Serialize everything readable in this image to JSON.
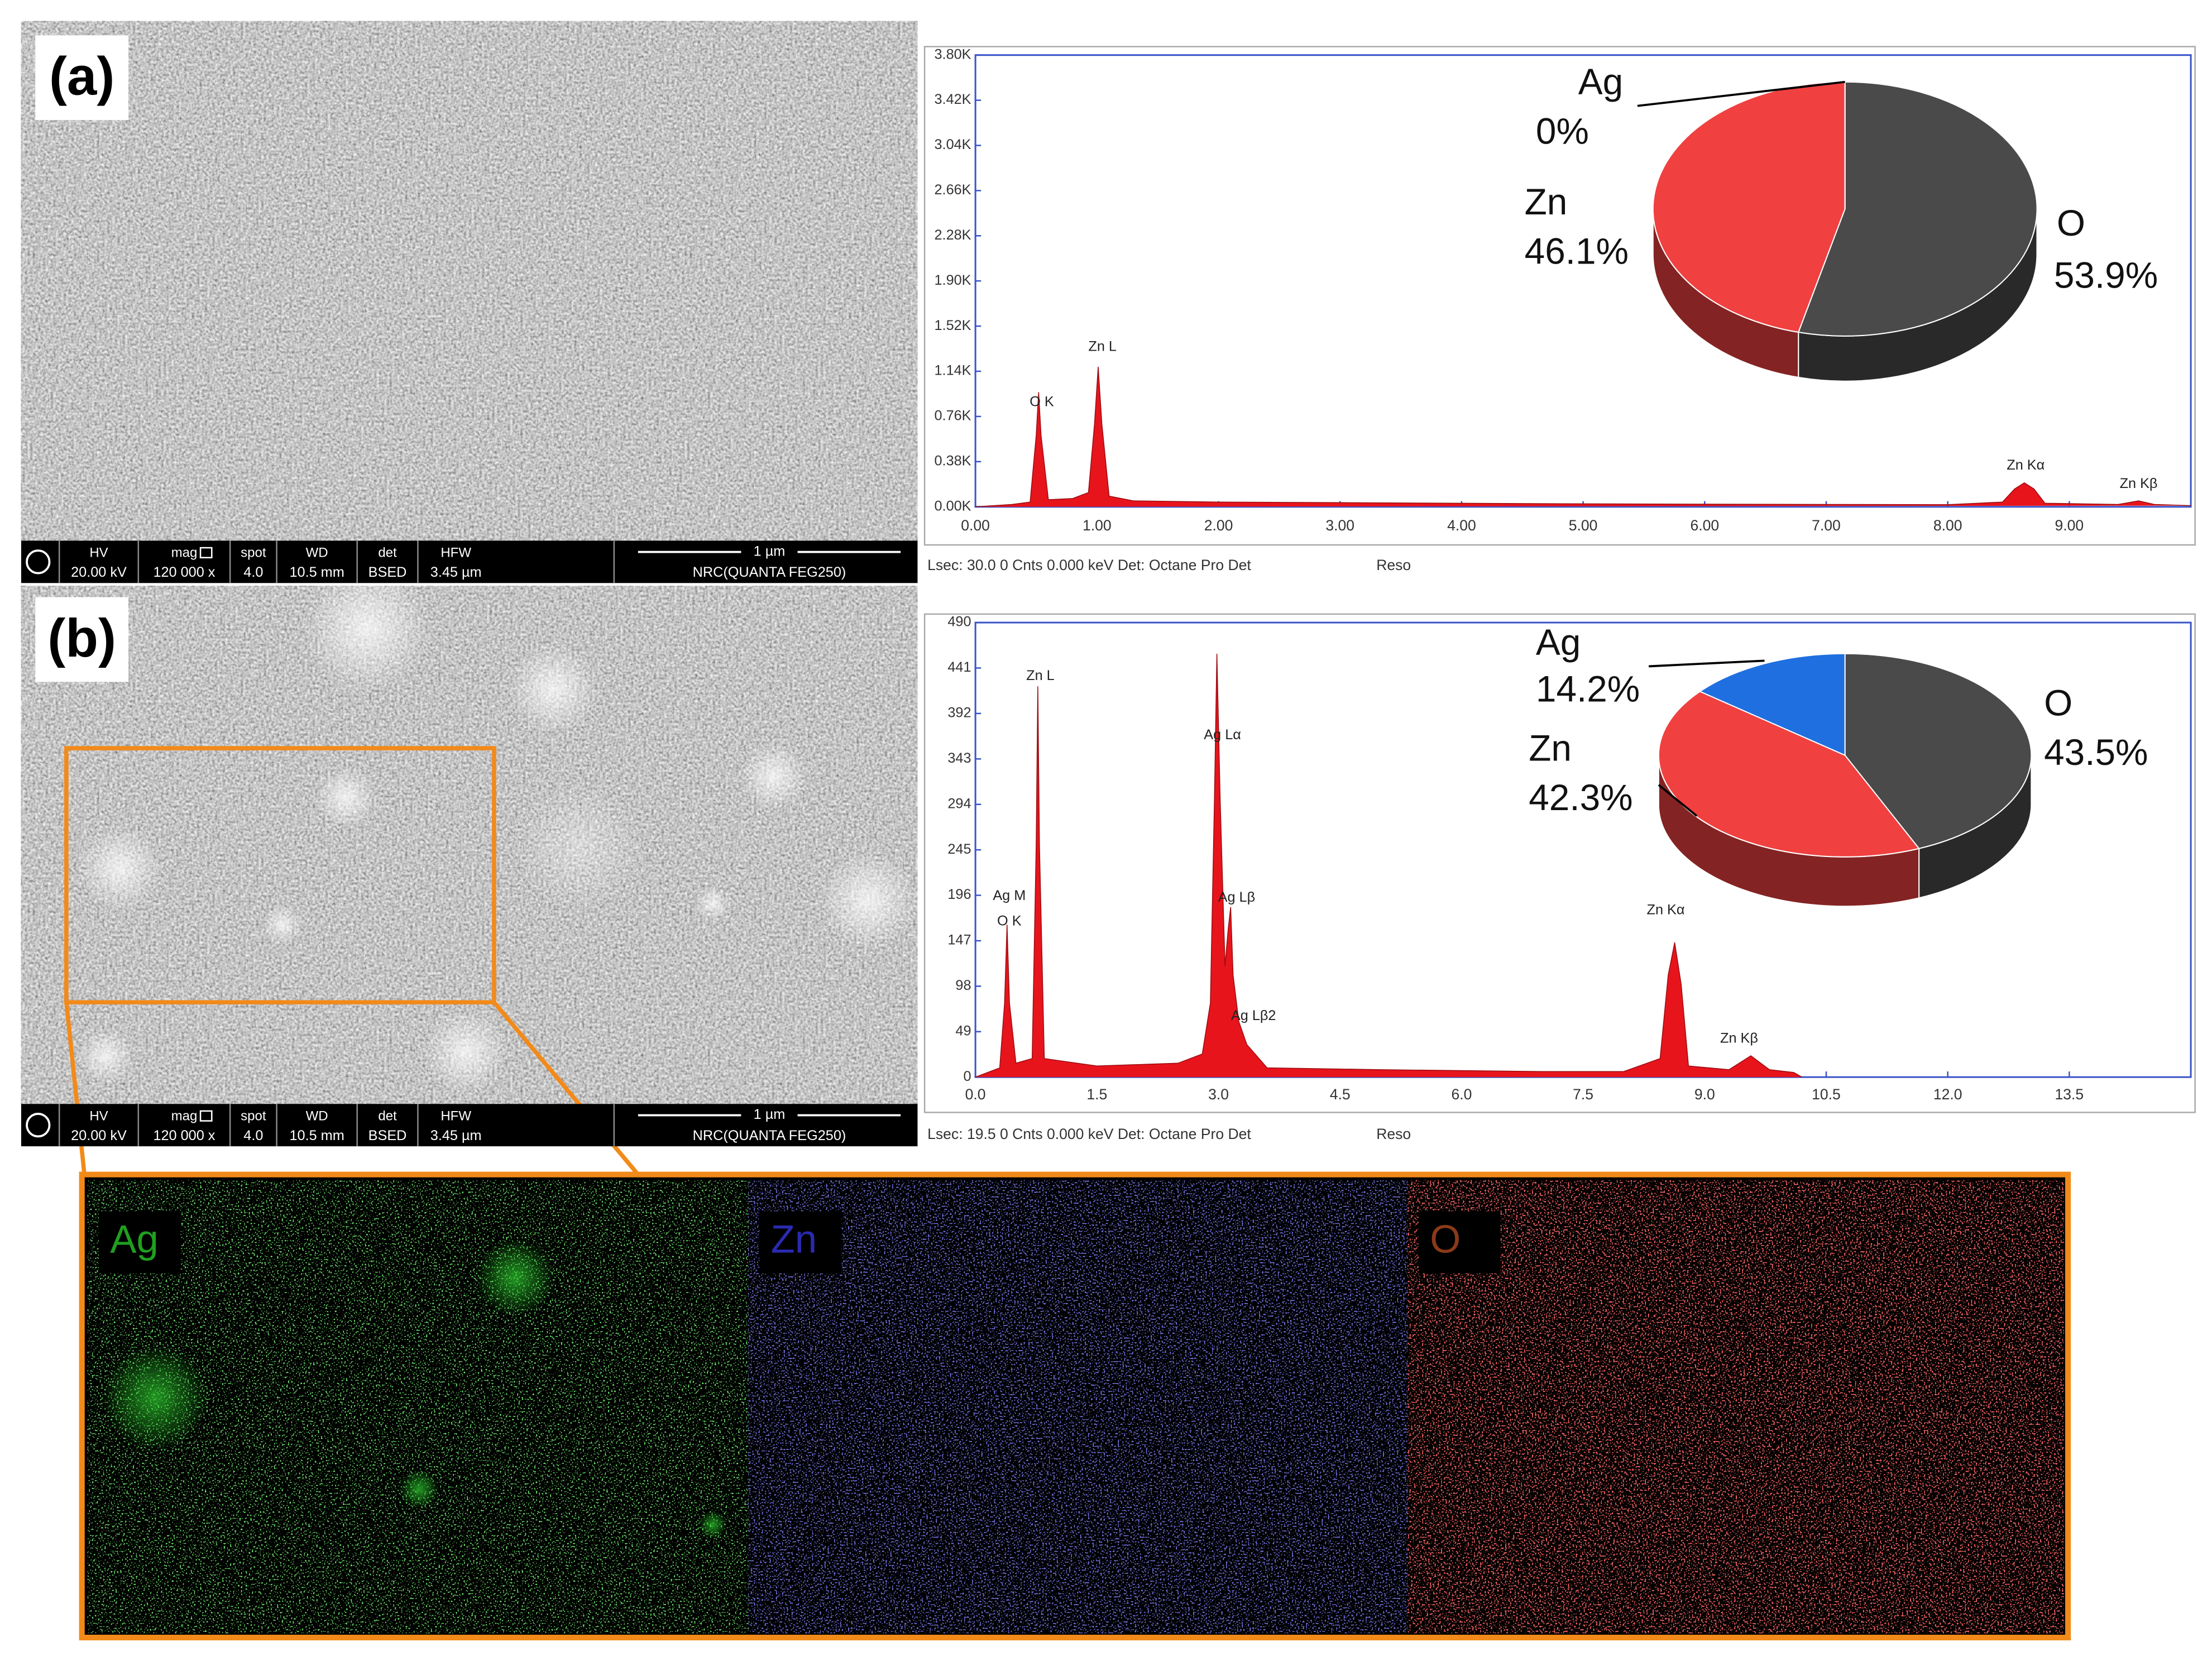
{
  "panel_labels": [
    "(a)",
    "(b)"
  ],
  "sem_info": [
    {
      "headers": [
        "HV",
        "mag",
        "spot",
        "WD",
        "det",
        "HFW"
      ],
      "values": [
        "20.00 kV",
        "120 000 x",
        "4.0",
        "10.5 mm",
        "BSED",
        "3.45 µm"
      ],
      "scale": "1 µm",
      "instrument": "NRC(QUANTA FEG250)"
    },
    {
      "headers": [
        "HV",
        "mag",
        "spot",
        "WD",
        "det",
        "HFW"
      ],
      "values": [
        "20.00 kV",
        "120 000 x",
        "4.0",
        "10.5 mm",
        "BSED",
        "3.45 µm"
      ],
      "scale": "1 µm",
      "instrument": "NRC(QUANTA FEG250)"
    }
  ],
  "eds_maps": [
    "Ag",
    "Zn",
    "O"
  ],
  "chart_data": [
    {
      "type": "area",
      "color": "#e8141c",
      "x": [
        0,
        0.3,
        0.45,
        0.5,
        0.52,
        0.54,
        0.6,
        0.8,
        0.93,
        0.98,
        1.01,
        1.04,
        1.1,
        1.3,
        2,
        3,
        4,
        5,
        6,
        7,
        8,
        8.45,
        8.55,
        8.63,
        8.71,
        8.8,
        9.4,
        9.57,
        9.7,
        10.0
      ],
      "values": [
        0,
        20,
        40,
        600,
        962,
        600,
        60,
        70,
        120,
        700,
        1176,
        700,
        90,
        50,
        40,
        35,
        30,
        25,
        22,
        20,
        18,
        40,
        150,
        202,
        150,
        30,
        20,
        50,
        20,
        10
      ],
      "xlim": [
        0,
        10
      ],
      "ylim": [
        0,
        3800
      ],
      "xticks": [
        {
          "value": 0,
          "label": "0.00"
        },
        {
          "value": 1,
          "label": "1.00"
        },
        {
          "value": 2,
          "label": "2.00"
        },
        {
          "value": 3,
          "label": "3.00"
        },
        {
          "value": 4,
          "label": "4.00"
        },
        {
          "value": 5,
          "label": "5.00"
        },
        {
          "value": 6,
          "label": "6.00"
        },
        {
          "value": 7,
          "label": "7.00"
        },
        {
          "value": 8,
          "label": "8.00"
        },
        {
          "value": 9,
          "label": "9.00"
        }
      ],
      "yticks": [
        {
          "value": 0,
          "label": "0.00K"
        },
        {
          "value": 380,
          "label": "0.38K"
        },
        {
          "value": 760,
          "label": "0.76K"
        },
        {
          "value": 1140,
          "label": "1.14K"
        },
        {
          "value": 1520,
          "label": "1.52K"
        },
        {
          "value": 1900,
          "label": "1.90K"
        },
        {
          "value": 2280,
          "label": "2.28K"
        },
        {
          "value": 2660,
          "label": "2.66K"
        },
        {
          "value": 3040,
          "label": "3.04K"
        },
        {
          "value": 3420,
          "label": "3.42K"
        },
        {
          "value": 3800,
          "label": "3.80K"
        }
      ],
      "annotations": [
        "O K",
        "Zn L",
        "Zn Kα",
        "Zn Kβ"
      ],
      "footer": "Lsec: 30.0 0 Cnts  0.000 keV Det: Octane Pro Det",
      "footer_note": "Reso"
    },
    {
      "type": "pie",
      "categories": [
        "O",
        "Zn",
        "Ag"
      ],
      "values": [
        53.9,
        46.1,
        0
      ],
      "value_labels": [
        "53.9%",
        "46.1%",
        "0%"
      ],
      "colors": [
        "#4a4a4a",
        "#f04040",
        "#1f6fe0"
      ]
    },
    {
      "type": "area",
      "color": "#e8141c",
      "x": [
        0,
        0.3,
        0.36,
        0.39,
        0.42,
        0.5,
        0.7,
        0.75,
        0.77,
        0.79,
        0.85,
        1.5,
        2.5,
        2.8,
        2.9,
        2.95,
        2.98,
        3.02,
        3.08,
        3.12,
        3.15,
        3.18,
        3.25,
        3.35,
        3.45,
        3.6,
        5,
        7,
        8,
        8.45,
        8.55,
        8.63,
        8.71,
        8.8,
        9.3,
        9.57,
        9.8,
        10.1,
        10.2
      ],
      "values": [
        0,
        10,
        80,
        164,
        80,
        15,
        20,
        250,
        421,
        250,
        20,
        12,
        15,
        25,
        80,
        300,
        456,
        300,
        120,
        160,
        183,
        110,
        60,
        35,
        25,
        10,
        8,
        6,
        6,
        20,
        110,
        145,
        100,
        12,
        8,
        23,
        8,
        5,
        0
      ],
      "xlim": [
        0,
        15
      ],
      "ylim": [
        0,
        490
      ],
      "xticks": [
        {
          "value": 0,
          "label": "0.0"
        },
        1.5,
        {
          "value": 3,
          "label": "3.0"
        },
        4.5,
        {
          "value": 6,
          "label": "6.0"
        },
        7.5,
        {
          "value": 9,
          "label": "9.0"
        },
        10.5,
        {
          "value": 12,
          "label": "12.0"
        },
        13.5
      ],
      "yticks": [
        0,
        49,
        98,
        147,
        196,
        245,
        294,
        343,
        392,
        441,
        490
      ],
      "annotations": [
        "Zn L",
        "Ag Lα",
        "Ag M",
        "O K",
        "Ag Lβ",
        "Ag Lβ2",
        "Zn Kα",
        "Zn Kβ"
      ],
      "footer": "Lsec: 19.5 0 Cnts  0.000 keV Det: Octane Pro Det",
      "footer_note": "Reso"
    },
    {
      "type": "pie",
      "categories": [
        "O",
        "Zn",
        "Ag"
      ],
      "values": [
        43.5,
        42.3,
        14.2
      ],
      "value_labels": [
        "43.5%",
        "42.3%",
        "14.2%"
      ],
      "colors": [
        "#4a4a4a",
        "#f04040",
        "#1f6fe0"
      ]
    }
  ]
}
